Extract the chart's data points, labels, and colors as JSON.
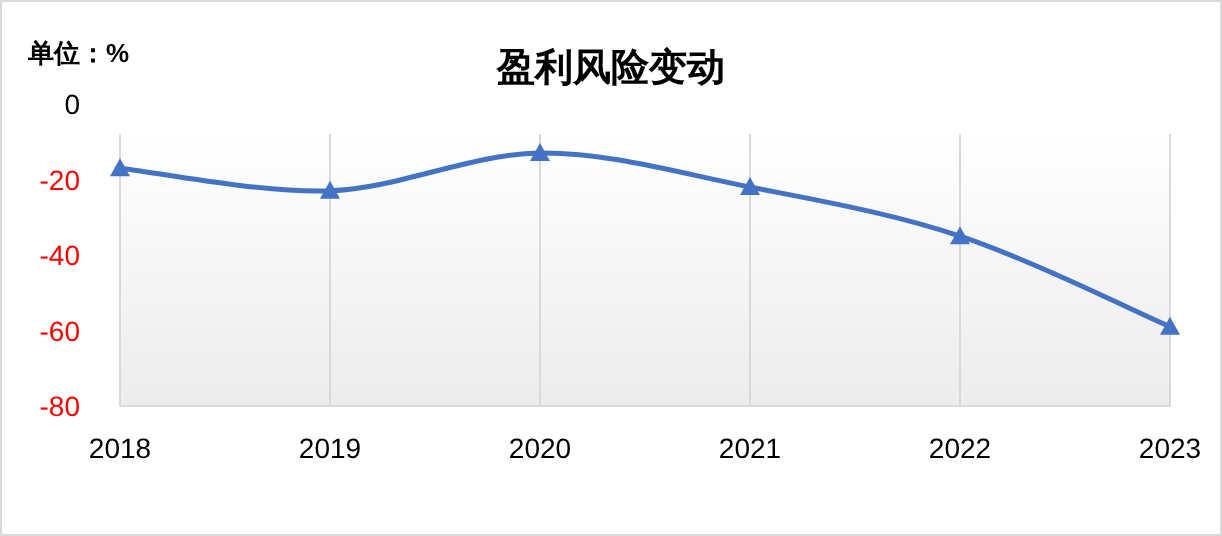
{
  "chart_data": {
    "type": "line",
    "title": "盈利风险变动",
    "annotations": [
      "单位：%"
    ],
    "categories": [
      "2018",
      "2019",
      "2020",
      "2021",
      "2022",
      "2023"
    ],
    "series": [
      {
        "color": "#4472c4",
        "values": [
          -17,
          -23,
          -13,
          -22,
          -35,
          -59
        ]
      }
    ],
    "ylim": [
      -80,
      0
    ],
    "yticks": [
      0,
      -20,
      -40,
      -60,
      -80
    ],
    "grid": "x",
    "marker": "triangle"
  }
}
